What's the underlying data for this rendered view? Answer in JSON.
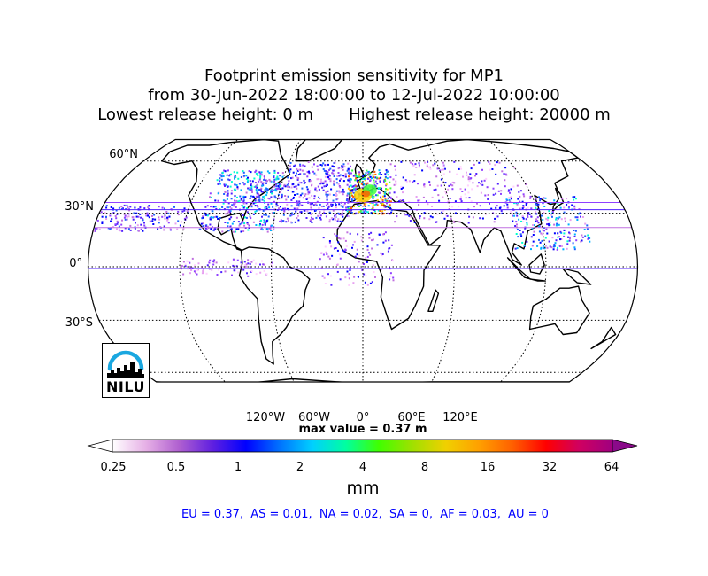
{
  "title": {
    "line1": "Footprint emission sensitivity for MP1",
    "line2": "from 30-Jun-2022 18:00:00 to 12-Jul-2022 10:00:00",
    "line3": "Lowest release height: 0 m       Highest release height: 20000 m"
  },
  "map": {
    "projection": "robinson",
    "lat_labels": [
      "60°N",
      "30°N",
      "0°",
      "30°S"
    ],
    "lon_labels": [
      "120°W",
      "60°W",
      "0°",
      "60°E",
      "120°E"
    ],
    "max_value_text": "max value = 0.37 m",
    "ocean_color": "#ffffff",
    "coast_color": "#000000"
  },
  "colorbar": {
    "ticks": [
      "0.25",
      "0.5",
      "1",
      "2",
      "4",
      "8",
      "16",
      "32",
      "64"
    ],
    "unit": "mm",
    "extend": "both",
    "colors": [
      "#ffffff",
      "#e6b0e6",
      "#b060d0",
      "#6020e0",
      "#0000ff",
      "#0070ff",
      "#00d0ff",
      "#00ffa0",
      "#40ff00",
      "#a0e000",
      "#f0d000",
      "#ffa000",
      "#ff6000",
      "#ff0000",
      "#d00060",
      "#a00080"
    ]
  },
  "region_stats": "EU = 0.37,  AS = 0.01,  NA = 0.02,  SA = 0,  AF = 0.03,  AU = 0",
  "region_stats_color": "#0000ff",
  "logo": {
    "text": "NILU",
    "icon": "nilu-arc-skyline-icon",
    "arc_color": "#1aa7e0"
  }
}
